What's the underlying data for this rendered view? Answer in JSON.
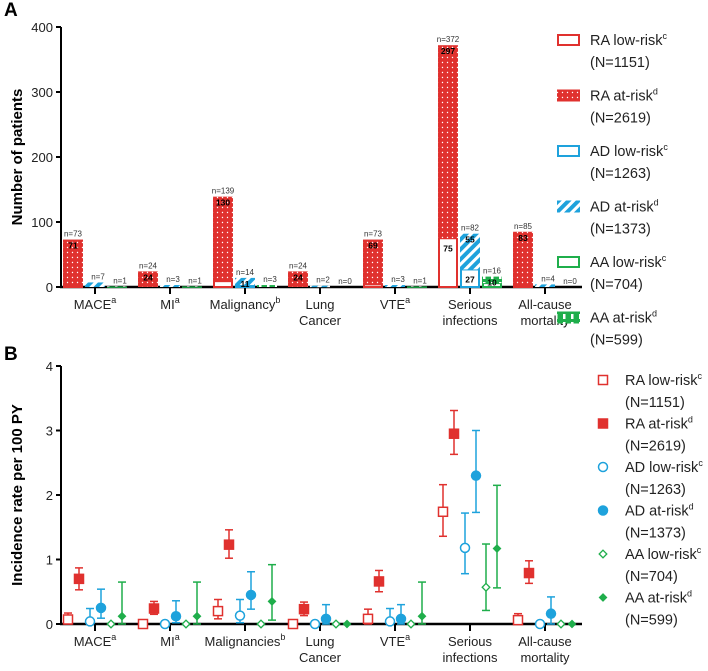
{
  "colors": {
    "RA": "#e0312e",
    "AD": "#1ea2dc",
    "AA": "#1fae4b"
  },
  "chart_data": [
    {
      "type": "bar",
      "panel_label": "A",
      "ylabel": "Number of patients",
      "ylim": [
        0,
        400
      ],
      "yticks": [
        0,
        100,
        200,
        300,
        400
      ],
      "categories": [
        [
          "MACE",
          "a"
        ],
        [
          "MI",
          "a"
        ],
        [
          "Malignancy",
          "b"
        ],
        [
          "Lung",
          "",
          "Cancer"
        ],
        [
          "VTE",
          "a"
        ],
        [
          "Serious",
          "",
          "infections"
        ],
        [
          "All-cause",
          "",
          "mortality"
        ]
      ],
      "stacked_note": "bar total = low-risk + at-risk",
      "series": [
        {
          "name": "RA",
          "totals": [
            73,
            24,
            139,
            24,
            73,
            372,
            85
          ],
          "at_risk": [
            71,
            24,
            130,
            24,
            69,
            297,
            83
          ],
          "low_risk_labels": [
            null,
            null,
            null,
            null,
            null,
            75,
            null
          ]
        },
        {
          "name": "AD",
          "totals": [
            7,
            3,
            14,
            2,
            3,
            82,
            4
          ],
          "at_risk": [
            null,
            null,
            11,
            null,
            null,
            55,
            null
          ],
          "low_risk_labels": [
            null,
            null,
            null,
            null,
            null,
            27,
            null
          ]
        },
        {
          "name": "AA",
          "totals": [
            1,
            1,
            3,
            0,
            1,
            16,
            0
          ],
          "at_risk": [
            null,
            null,
            null,
            null,
            null,
            10,
            null
          ],
          "low_risk_labels": [
            null,
            null,
            null,
            null,
            null,
            null,
            null
          ]
        }
      ],
      "legend": [
        {
          "label": "RA low-risk",
          "sup": "c",
          "n": "(N=1151)",
          "group": "RA",
          "kind": "low"
        },
        {
          "label": "RA at-risk",
          "sup": "d",
          "n": "(N=2619)",
          "group": "RA",
          "kind": "at"
        },
        {
          "label": "AD low-risk",
          "sup": "c",
          "n": "(N=1263)",
          "group": "AD",
          "kind": "low"
        },
        {
          "label": "AD at-risk",
          "sup": "d",
          "n": "(N=1373)",
          "group": "AD",
          "kind": "at"
        },
        {
          "label": "AA low-risk",
          "sup": "c",
          "n": "(N=704)",
          "group": "AA",
          "kind": "low"
        },
        {
          "label": "AA at-risk",
          "sup": "d",
          "n": "(N=599)",
          "group": "AA",
          "kind": "at"
        }
      ],
      "legend_position": "right"
    },
    {
      "type": "scatter",
      "panel_label": "B",
      "ylabel": "Incidence rate per 100 PY",
      "ylim": [
        0,
        4
      ],
      "yticks": [
        0,
        1,
        2,
        3,
        4
      ],
      "categories": [
        [
          "MACE",
          "a"
        ],
        [
          "MI",
          "a"
        ],
        [
          "Malignancies",
          "b"
        ],
        [
          "Lung",
          "",
          "Cancer"
        ],
        [
          "VTE",
          "a"
        ],
        [
          "Serious",
          "",
          "infections"
        ],
        [
          "All-cause",
          "",
          "mortality"
        ]
      ],
      "series": [
        {
          "name": "RA low-risk",
          "group": "RA",
          "kind": "low",
          "values": [
            [
              0.07,
              0,
              0.17
            ],
            [
              0,
              0,
              0
            ],
            [
              0.2,
              0.08,
              0.38
            ],
            [
              0,
              0,
              0
            ],
            [
              0.08,
              0,
              0.23
            ],
            [
              1.74,
              1.36,
              2.16
            ],
            [
              0.06,
              0,
              0.16
            ]
          ]
        },
        {
          "name": "RA at-risk",
          "group": "RA",
          "kind": "at",
          "values": [
            [
              0.7,
              0.53,
              0.87
            ],
            [
              0.24,
              0.15,
              0.35
            ],
            [
              1.23,
              1.02,
              1.46
            ],
            [
              0.23,
              0.13,
              0.34
            ],
            [
              0.66,
              0.5,
              0.83
            ],
            [
              2.95,
              2.63,
              3.31
            ],
            [
              0.79,
              0.63,
              0.98
            ]
          ]
        },
        {
          "name": "AD low-risk",
          "group": "AD",
          "kind": "low",
          "values": [
            [
              0.04,
              0,
              0.24
            ],
            [
              0,
              0,
              0
            ],
            [
              0.13,
              0.02,
              0.38
            ],
            [
              0,
              0,
              0
            ],
            [
              0.04,
              0,
              0.24
            ],
            [
              1.18,
              0.78,
              1.72
            ],
            [
              0,
              0,
              0
            ]
          ]
        },
        {
          "name": "AD at-risk",
          "group": "AD",
          "kind": "at",
          "values": [
            [
              0.25,
              0.09,
              0.54
            ],
            [
              0.12,
              0.02,
              0.36
            ],
            [
              0.45,
              0.23,
              0.81
            ],
            [
              0.08,
              0,
              0.3
            ],
            [
              0.08,
              0,
              0.3
            ],
            [
              2.3,
              1.73,
              3.0
            ],
            [
              0.16,
              0,
              0.42
            ]
          ]
        },
        {
          "name": "AA low-risk",
          "group": "AA",
          "kind": "low",
          "values": [
            [
              0,
              0,
              0
            ],
            [
              0,
              0,
              0
            ],
            [
              0,
              0,
              0
            ],
            [
              0,
              0,
              0
            ],
            [
              0,
              0,
              0
            ],
            [
              0.57,
              0.21,
              1.24
            ],
            [
              0,
              0,
              0
            ]
          ]
        },
        {
          "name": "AA at-risk",
          "group": "AA",
          "kind": "at",
          "values": [
            [
              0.12,
              0,
              0.65
            ],
            [
              0.12,
              0,
              0.65
            ],
            [
              0.35,
              0.06,
              0.92
            ],
            [
              0,
              0,
              0
            ],
            [
              0.12,
              0,
              0.65
            ],
            [
              1.17,
              0.56,
              2.15
            ],
            [
              0,
              0,
              0
            ]
          ]
        }
      ],
      "legend": [
        {
          "label": "RA low-risk",
          "sup": "c",
          "n": "(N=1151)"
        },
        {
          "label": "RA at-risk",
          "sup": "d",
          "n": "(N=2619)"
        },
        {
          "label": "AD low-risk",
          "sup": "c",
          "n": "(N=1263)"
        },
        {
          "label": "AD at-risk",
          "sup": "d",
          "n": "(N=1373)"
        },
        {
          "label": "AA low-risk",
          "sup": "c",
          "n": "(N=704)"
        },
        {
          "label": "AA at-risk",
          "sup": "d",
          "n": "(N=599)"
        }
      ],
      "legend_position": "right"
    }
  ]
}
